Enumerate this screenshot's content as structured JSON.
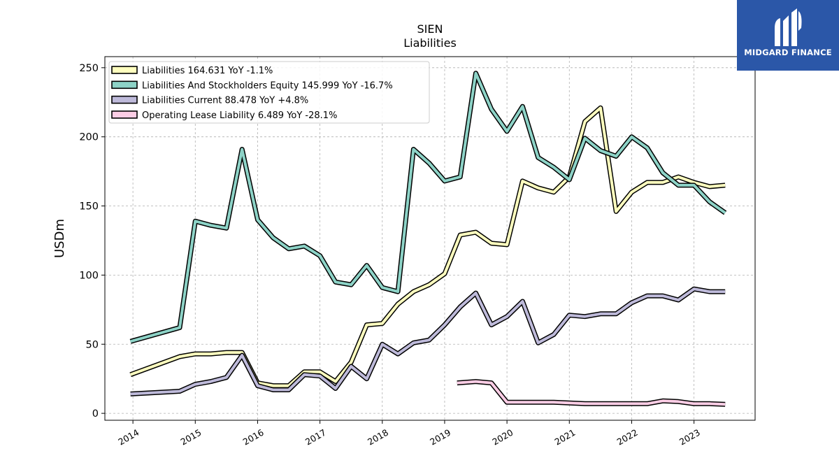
{
  "chart_data": {
    "type": "line",
    "title": "SIEN",
    "subtitle": "Liabilities",
    "ylabel": "USDm",
    "xlabel": "",
    "ylim": [
      -5,
      258
    ],
    "xlim": [
      2013.55,
      2023.98
    ],
    "y_ticks": [
      0,
      50,
      100,
      150,
      200,
      250
    ],
    "x_ticks": [
      2014,
      2015,
      2016,
      2017,
      2018,
      2019,
      2020,
      2021,
      2022,
      2023
    ],
    "x_tick_labels": [
      "2014",
      "2015",
      "2016",
      "2017",
      "2018",
      "2019",
      "2020",
      "2021",
      "2022",
      "2023"
    ],
    "grid": true,
    "legend_position": "top-left",
    "series": [
      {
        "name": "Liabilities",
        "legend_label": "Liabilities  164.631 YoY -1.1%",
        "color": "#ffffbf",
        "points": [
          [
            2013.96,
            28
          ],
          [
            2014.75,
            41
          ],
          [
            2015.0,
            43
          ],
          [
            2015.25,
            43
          ],
          [
            2015.5,
            44
          ],
          [
            2015.75,
            44
          ],
          [
            2016.0,
            22
          ],
          [
            2016.25,
            20
          ],
          [
            2016.5,
            20
          ],
          [
            2016.75,
            30
          ],
          [
            2017.0,
            30
          ],
          [
            2017.25,
            23
          ],
          [
            2017.5,
            37
          ],
          [
            2017.75,
            64
          ],
          [
            2018.0,
            65
          ],
          [
            2018.25,
            79
          ],
          [
            2018.5,
            88
          ],
          [
            2018.75,
            93
          ],
          [
            2019.0,
            101
          ],
          [
            2019.25,
            129
          ],
          [
            2019.5,
            131
          ],
          [
            2019.75,
            123
          ],
          [
            2020.0,
            122
          ],
          [
            2020.25,
            168
          ],
          [
            2020.5,
            163
          ],
          [
            2020.75,
            160
          ],
          [
            2021.0,
            171
          ],
          [
            2021.25,
            211
          ],
          [
            2021.5,
            221
          ],
          [
            2021.75,
            146
          ],
          [
            2022.0,
            160
          ],
          [
            2022.25,
            167
          ],
          [
            2022.5,
            167
          ],
          [
            2022.75,
            171
          ],
          [
            2023.0,
            167
          ],
          [
            2023.25,
            164
          ],
          [
            2023.5,
            165
          ]
        ]
      },
      {
        "name": "Liabilities And Stockholders Equity",
        "legend_label": "Liabilities And Stockholders Equity  145.999 YoY -16.7%",
        "color": "#8dd3c7",
        "points": [
          [
            2013.96,
            52
          ],
          [
            2014.75,
            62
          ],
          [
            2015.0,
            139
          ],
          [
            2015.25,
            136
          ],
          [
            2015.5,
            134
          ],
          [
            2015.75,
            191
          ],
          [
            2016.0,
            140
          ],
          [
            2016.25,
            127
          ],
          [
            2016.5,
            119
          ],
          [
            2016.75,
            121
          ],
          [
            2017.0,
            114
          ],
          [
            2017.25,
            95
          ],
          [
            2017.5,
            93
          ],
          [
            2017.75,
            107
          ],
          [
            2018.0,
            91
          ],
          [
            2018.25,
            88
          ],
          [
            2018.5,
            191
          ],
          [
            2018.75,
            181
          ],
          [
            2019.0,
            168
          ],
          [
            2019.25,
            171
          ],
          [
            2019.5,
            246
          ],
          [
            2019.75,
            220
          ],
          [
            2020.0,
            204
          ],
          [
            2020.25,
            222
          ],
          [
            2020.5,
            185
          ],
          [
            2020.75,
            178
          ],
          [
            2021.0,
            169
          ],
          [
            2021.25,
            199
          ],
          [
            2021.5,
            190
          ],
          [
            2021.75,
            186
          ],
          [
            2022.0,
            200
          ],
          [
            2022.25,
            192
          ],
          [
            2022.5,
            174
          ],
          [
            2022.75,
            165
          ],
          [
            2023.0,
            165
          ],
          [
            2023.25,
            153
          ],
          [
            2023.5,
            145
          ]
        ]
      },
      {
        "name": "Liabilities Current",
        "legend_label": "Liabilities Current  88.478 YoY +4.8%",
        "color": "#bebada",
        "points": [
          [
            2013.96,
            14
          ],
          [
            2014.75,
            16
          ],
          [
            2015.0,
            21
          ],
          [
            2015.25,
            23
          ],
          [
            2015.5,
            26
          ],
          [
            2015.75,
            42
          ],
          [
            2016.0,
            20
          ],
          [
            2016.25,
            17
          ],
          [
            2016.5,
            17
          ],
          [
            2016.75,
            28
          ],
          [
            2017.0,
            27
          ],
          [
            2017.25,
            18
          ],
          [
            2017.5,
            34
          ],
          [
            2017.75,
            25
          ],
          [
            2018.0,
            50
          ],
          [
            2018.25,
            43
          ],
          [
            2018.5,
            51
          ],
          [
            2018.75,
            53
          ],
          [
            2019.0,
            64
          ],
          [
            2019.25,
            77
          ],
          [
            2019.5,
            87
          ],
          [
            2019.75,
            64
          ],
          [
            2020.0,
            70
          ],
          [
            2020.25,
            81
          ],
          [
            2020.5,
            51
          ],
          [
            2020.75,
            57
          ],
          [
            2021.0,
            71
          ],
          [
            2021.25,
            70
          ],
          [
            2021.5,
            72
          ],
          [
            2021.75,
            72
          ],
          [
            2022.0,
            80
          ],
          [
            2022.25,
            85
          ],
          [
            2022.5,
            85
          ],
          [
            2022.75,
            82
          ],
          [
            2023.0,
            90
          ],
          [
            2023.25,
            88
          ],
          [
            2023.5,
            88
          ]
        ]
      },
      {
        "name": "Operating Lease Liability",
        "legend_label": "Operating Lease Liability  6.489 YoY -28.1%",
        "color": "#fccde5",
        "points": [
          [
            2019.2,
            22
          ],
          [
            2019.5,
            23
          ],
          [
            2019.75,
            22
          ],
          [
            2020.0,
            8
          ],
          [
            2020.25,
            8
          ],
          [
            2020.5,
            8
          ],
          [
            2020.75,
            8
          ],
          [
            2021.0,
            7.5
          ],
          [
            2021.25,
            7
          ],
          [
            2021.5,
            7
          ],
          [
            2021.75,
            7
          ],
          [
            2022.0,
            7
          ],
          [
            2022.25,
            7
          ],
          [
            2022.5,
            9
          ],
          [
            2022.75,
            8.5
          ],
          [
            2023.0,
            7
          ],
          [
            2023.25,
            7
          ],
          [
            2023.5,
            6.5
          ]
        ]
      }
    ]
  },
  "logo": {
    "text": "MIDGARD FINANCE",
    "color": "#2b57a8"
  }
}
